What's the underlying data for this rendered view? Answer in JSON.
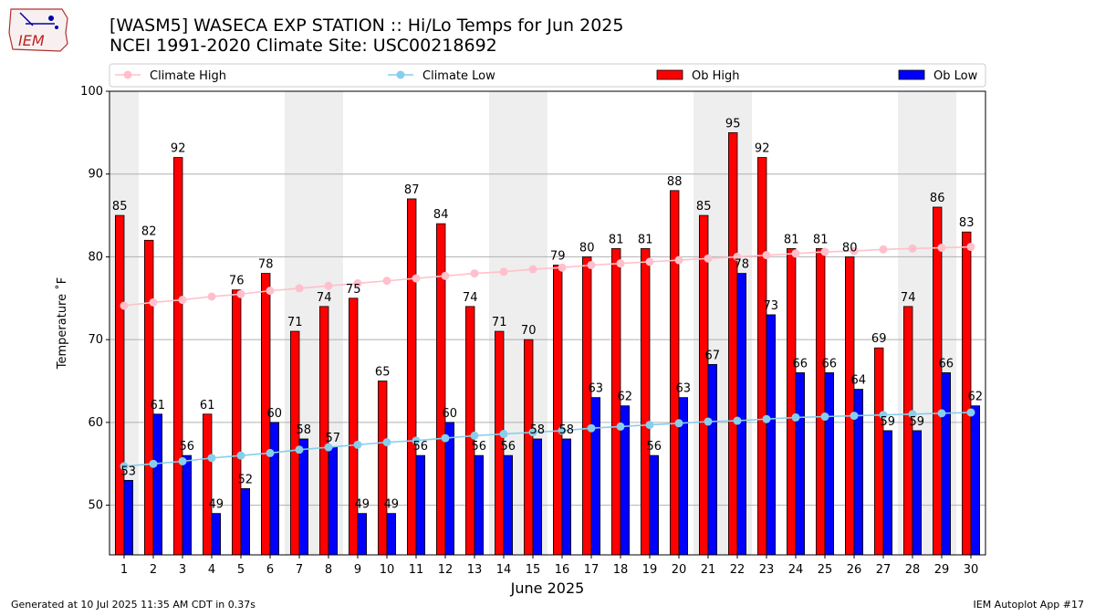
{
  "header": {
    "title_line1": "[WASM5] WASECA EXP STATION :: Hi/Lo Temps for Jun 2025",
    "title_line2": "NCEI 1991-2020 Climate Site: USC00218692",
    "logo_text": "IEM"
  },
  "footer": {
    "left": "Generated at 10 Jul 2025 11:35 AM CDT in 0.37s",
    "right": "IEM Autoplot App #17"
  },
  "colors": {
    "ob_high": "#ff0000",
    "ob_low": "#0000ff",
    "climate_high": "#ffc0cb",
    "climate_low": "#87ceeb",
    "weekend_band": "#eeeeee"
  },
  "chart_data": {
    "type": "bar",
    "xlabel": "June 2025",
    "ylabel": "Temperature ˚F",
    "ylim": [
      44,
      100
    ],
    "yticks": [
      50,
      60,
      70,
      80,
      90,
      100
    ],
    "grid": true,
    "legend_placement": "top",
    "categories": [
      "1",
      "2",
      "3",
      "4",
      "5",
      "6",
      "7",
      "8",
      "9",
      "10",
      "11",
      "12",
      "13",
      "14",
      "15",
      "16",
      "17",
      "18",
      "19",
      "20",
      "21",
      "22",
      "23",
      "24",
      "25",
      "26",
      "27",
      "28",
      "29",
      "30"
    ],
    "shaded_days": [
      "1",
      "7",
      "8",
      "14",
      "15",
      "21",
      "22",
      "28",
      "29"
    ],
    "series": [
      {
        "name": "Climate High",
        "kind": "line",
        "values": [
          74.1,
          74.5,
          74.8,
          75.2,
          75.5,
          75.9,
          76.2,
          76.5,
          76.8,
          77.1,
          77.4,
          77.7,
          78.0,
          78.2,
          78.5,
          78.7,
          79.0,
          79.2,
          79.4,
          79.6,
          79.8,
          80.0,
          80.2,
          80.4,
          80.6,
          80.7,
          80.9,
          81.0,
          81.1,
          81.2
        ]
      },
      {
        "name": "Climate Low",
        "kind": "line",
        "values": [
          54.7,
          55.0,
          55.3,
          55.7,
          56.0,
          56.3,
          56.7,
          57.0,
          57.3,
          57.6,
          57.8,
          58.1,
          58.4,
          58.6,
          58.8,
          59.0,
          59.3,
          59.5,
          59.7,
          59.9,
          60.1,
          60.2,
          60.4,
          60.6,
          60.7,
          60.8,
          60.9,
          61.0,
          61.1,
          61.2
        ]
      },
      {
        "name": "Ob High",
        "kind": "bar",
        "values": [
          85,
          82,
          92,
          61,
          76,
          78,
          71,
          74,
          75,
          65,
          87,
          84,
          74,
          71,
          70,
          79,
          80,
          81,
          81,
          88,
          85,
          95,
          92,
          81,
          81,
          80,
          69,
          74,
          86,
          83
        ]
      },
      {
        "name": "Ob Low",
        "kind": "bar",
        "values": [
          53,
          61,
          56,
          49,
          52,
          60,
          58,
          57,
          49,
          49,
          56,
          60,
          56,
          56,
          58,
          58,
          63,
          62,
          56,
          63,
          67,
          78,
          73,
          66,
          66,
          64,
          59,
          59,
          66,
          62
        ]
      }
    ]
  }
}
